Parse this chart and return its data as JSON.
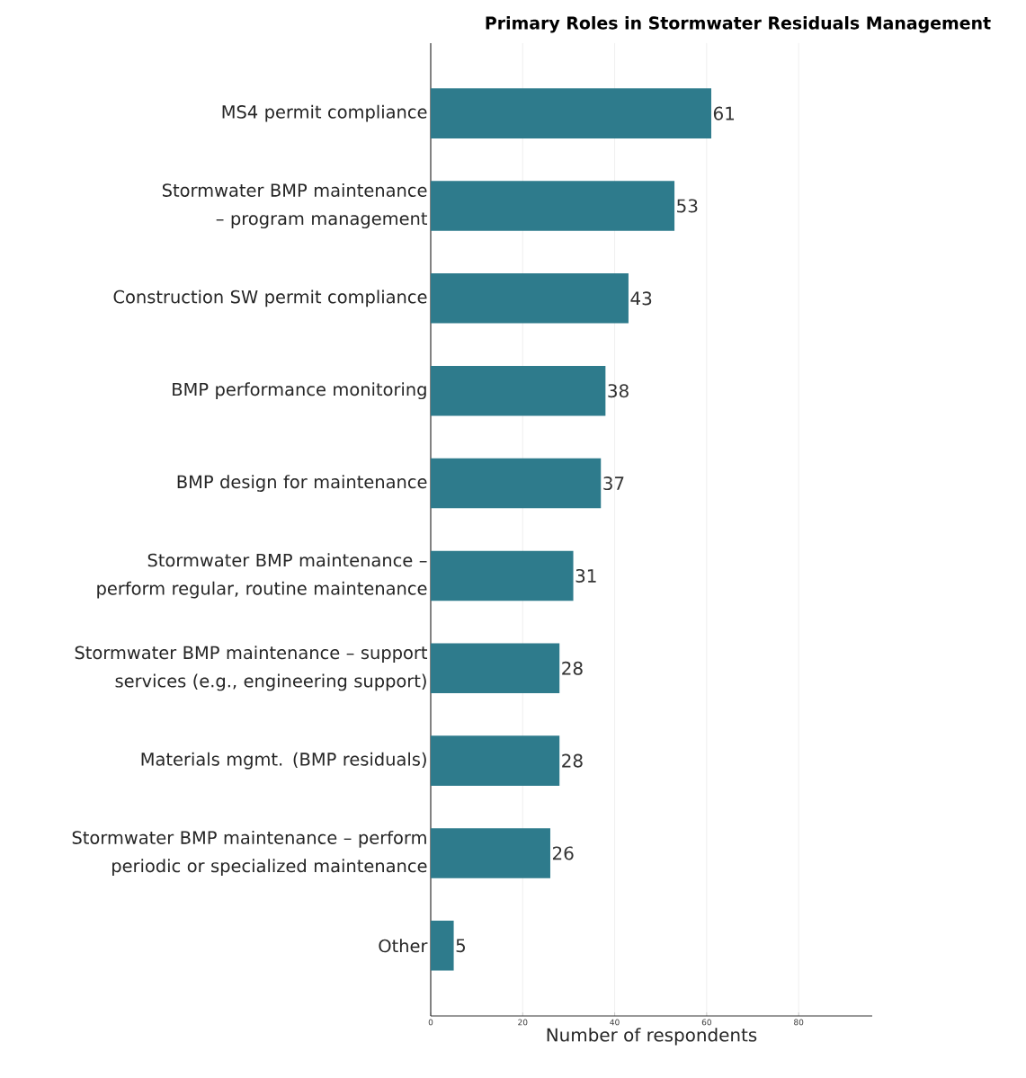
{
  "chart_data": {
    "type": "bar",
    "orientation": "horizontal",
    "title": "Primary Roles in Stormwater Residuals Management",
    "xlabel": "Number of respondents",
    "categories": [
      "MS4 permit compliance",
      "Stormwater BMP maintenance – program management",
      "Construction SW permit compliance",
      "BMP performance monitoring",
      "BMP design for maintenance",
      "Stormwater BMP maintenance – perform regular, routine maintenance",
      "Stormwater BMP maintenance – support services (e.g., engineering support)",
      "Materials mgmt. (BMP residuals)",
      "Stormwater BMP maintenance – perform periodic or specialized maintenance",
      "Other"
    ],
    "values": [
      61,
      53,
      43,
      38,
      37,
      31,
      28,
      28,
      26,
      5
    ],
    "color": "#2e7b8c",
    "data_labels": true,
    "grid": "x",
    "xlim": [
      0,
      96
    ],
    "xticks": [
      0,
      20,
      40,
      60,
      80
    ]
  }
}
